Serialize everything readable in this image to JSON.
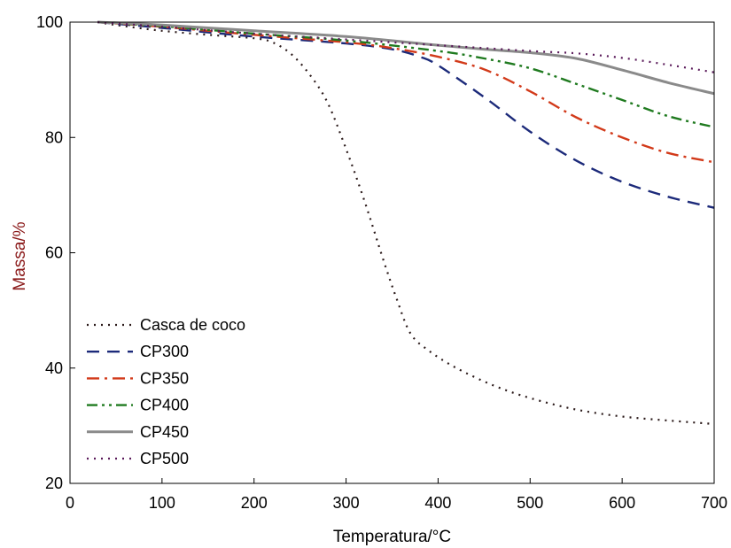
{
  "chart_data": {
    "type": "line",
    "xlabel": "Temperatura/°C",
    "ylabel": "Massa/%",
    "xlim": [
      0,
      700
    ],
    "ylim": [
      20,
      100
    ],
    "xticks": [
      0,
      100,
      200,
      300,
      400,
      500,
      600,
      700
    ],
    "yticks": [
      20,
      40,
      60,
      80,
      100
    ],
    "grid": false,
    "legend_position": "bottom-left",
    "ylabel_color": "#8b1a1a",
    "series": [
      {
        "name": "Casca de coco",
        "color": "#2b1a1a",
        "dash": "dot",
        "x": [
          30,
          50,
          100,
          150,
          200,
          220,
          240,
          260,
          280,
          300,
          320,
          340,
          355,
          370,
          390,
          420,
          460,
          500,
          550,
          600,
          650,
          700
        ],
        "y": [
          100,
          99.5,
          98.5,
          97.8,
          97.2,
          96.5,
          94.5,
          91,
          86,
          78,
          69,
          59,
          52,
          46,
          43,
          40,
          37,
          34.8,
          32.8,
          31.6,
          30.9,
          30.3
        ]
      },
      {
        "name": "CP300",
        "color": "#1c2a7a",
        "dash": "dash",
        "x": [
          30,
          100,
          200,
          300,
          350,
          380,
          400,
          450,
          500,
          550,
          600,
          650,
          700
        ],
        "y": [
          100,
          99,
          97.5,
          96.3,
          95.3,
          94,
          92.5,
          87,
          81,
          76,
          72.3,
          69.7,
          67.8
        ]
      },
      {
        "name": "CP350",
        "color": "#d23a1a",
        "dash": "dashdot",
        "x": [
          30,
          100,
          200,
          300,
          350,
          400,
          450,
          500,
          550,
          600,
          650,
          700
        ],
        "y": [
          100,
          99.2,
          97.8,
          96.5,
          95.5,
          94,
          91.8,
          88,
          83.5,
          80,
          77.3,
          75.7
        ]
      },
      {
        "name": "CP400",
        "color": "#1f7a1f",
        "dash": "dashdotdot",
        "x": [
          30,
          100,
          200,
          300,
          400,
          450,
          500,
          550,
          600,
          650,
          700
        ],
        "y": [
          100,
          99.3,
          98,
          96.8,
          95,
          93.7,
          92,
          89.3,
          86.5,
          83.7,
          81.8
        ]
      },
      {
        "name": "CP450",
        "color": "#8a8a8a",
        "dash": "solid",
        "x": [
          30,
          100,
          200,
          300,
          400,
          450,
          500,
          550,
          600,
          650,
          700
        ],
        "y": [
          100,
          99.5,
          98.5,
          97.5,
          96,
          95.3,
          94.7,
          93.7,
          91.7,
          89.5,
          87.6
        ]
      },
      {
        "name": "CP500",
        "color": "#5a1a5a",
        "dash": "dot",
        "x": [
          30,
          100,
          200,
          300,
          400,
          500,
          550,
          600,
          650,
          700
        ],
        "y": [
          100,
          99.2,
          98,
          97,
          96,
          95,
          94.6,
          93.8,
          92.6,
          91.3
        ]
      }
    ]
  }
}
